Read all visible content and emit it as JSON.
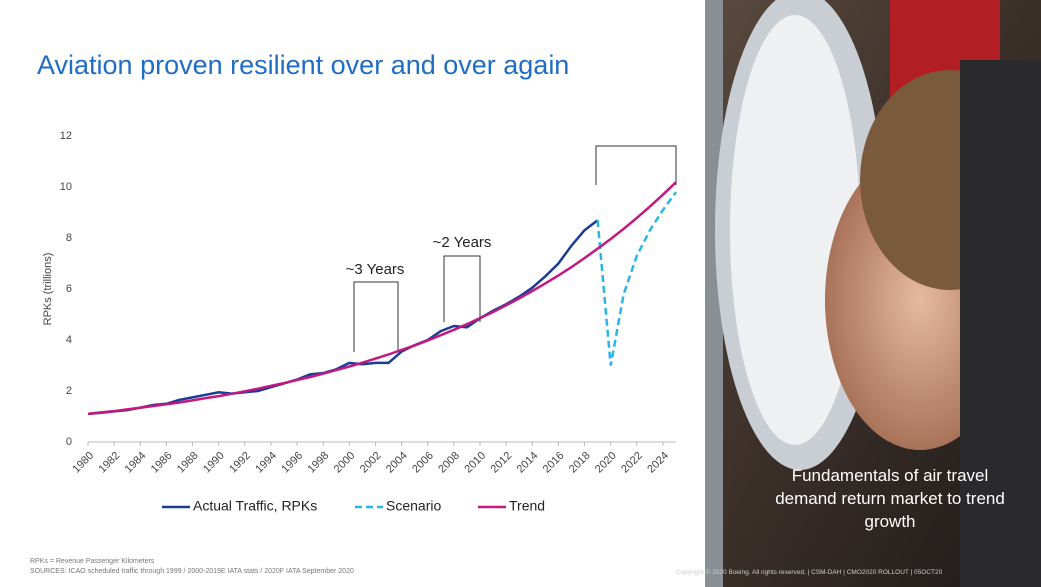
{
  "title": "Aviation proven resilient over and over again",
  "chart_data": {
    "type": "line",
    "y_label": "RPKs (trillions)",
    "x": [
      1980,
      1981,
      1982,
      1983,
      1984,
      1985,
      1986,
      1987,
      1988,
      1989,
      1990,
      1991,
      1992,
      1993,
      1994,
      1995,
      1996,
      1997,
      1998,
      1999,
      2000,
      2001,
      2002,
      2003,
      2004,
      2005,
      2006,
      2007,
      2008,
      2009,
      2010,
      2011,
      2012,
      2013,
      2014,
      2015,
      2016,
      2017,
      2018,
      2019,
      2020,
      2021,
      2022,
      2023,
      2024,
      2025
    ],
    "series": [
      {
        "name": "Actual Traffic, RPKs",
        "color": "#1b3c94",
        "dashed": false,
        "values": [
          1.1,
          1.15,
          1.2,
          1.25,
          1.35,
          1.45,
          1.5,
          1.65,
          1.75,
          1.85,
          1.95,
          1.9,
          1.95,
          2.0,
          2.15,
          2.3,
          2.45,
          2.65,
          2.7,
          2.85,
          3.1,
          3.05,
          3.1,
          3.1,
          3.55,
          3.8,
          4.0,
          4.35,
          4.55,
          4.5,
          4.85,
          5.15,
          5.4,
          5.7,
          6.05,
          6.5,
          7.0,
          7.7,
          8.3,
          8.7,
          null,
          null,
          null,
          null,
          null,
          null
        ]
      },
      {
        "name": "Scenario",
        "color": "#2bb5e6",
        "dashed": true,
        "values": [
          null,
          null,
          null,
          null,
          null,
          null,
          null,
          null,
          null,
          null,
          null,
          null,
          null,
          null,
          null,
          null,
          null,
          null,
          null,
          null,
          null,
          null,
          null,
          null,
          null,
          null,
          null,
          null,
          null,
          null,
          null,
          null,
          null,
          null,
          null,
          null,
          null,
          null,
          null,
          8.7,
          3.0,
          5.8,
          7.3,
          8.3,
          9.1,
          9.8
        ]
      },
      {
        "name": "Trend",
        "color": "#c2187f",
        "dashed": false,
        "values": [
          1.1,
          1.16,
          1.21,
          1.28,
          1.34,
          1.41,
          1.48,
          1.55,
          1.63,
          1.72,
          1.8,
          1.89,
          1.99,
          2.09,
          2.2,
          2.31,
          2.43,
          2.55,
          2.68,
          2.82,
          2.96,
          3.11,
          3.27,
          3.43,
          3.61,
          3.79,
          3.98,
          4.19,
          4.4,
          4.62,
          4.86,
          5.1,
          5.36,
          5.63,
          5.92,
          6.22,
          6.53,
          6.86,
          7.21,
          7.58,
          7.96,
          8.36,
          8.79,
          9.23,
          9.7,
          10.19
        ]
      }
    ],
    "xlim": [
      1980,
      2025
    ],
    "xticks": [
      1980,
      1982,
      1984,
      1986,
      1988,
      1990,
      1992,
      1994,
      1996,
      1998,
      2000,
      2002,
      2004,
      2006,
      2008,
      2010,
      2012,
      2014,
      2016,
      2018,
      2020,
      2022,
      2024
    ],
    "ylim": [
      0,
      12
    ],
    "yticks": [
      0,
      2,
      4,
      6,
      8,
      10,
      12
    ],
    "grid": false,
    "legend": "bottom",
    "annotations": [
      "~3 Years",
      "~2 Years"
    ]
  },
  "photo_caption": "Fundamentals of air travel demand return market to trend growth",
  "footnotes": [
    "RPKs = Revenue Passenger Kilometers",
    "SOURCES: ICAO scheduled traffic through 1999 / 2000-2019E IATA stats / 2020F IATA September 2020"
  ],
  "copyright": "Copyright © 2020 Boeing. All rights reserved.  |  CSM-DAH  |  CMO2020 ROLLOUT  |  05OCT20"
}
